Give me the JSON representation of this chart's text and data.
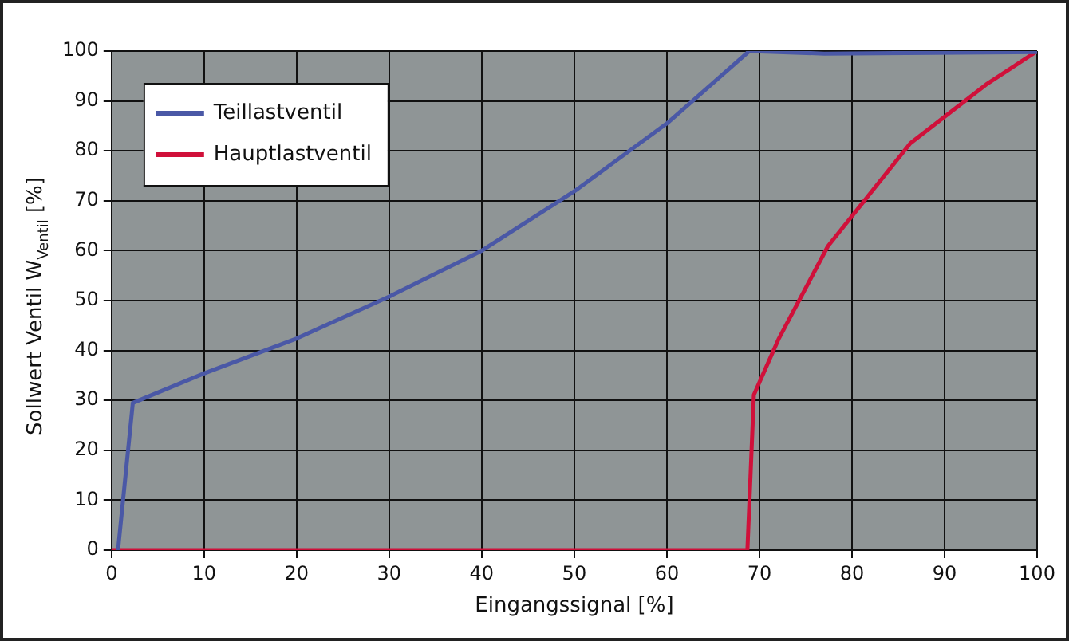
{
  "chart_data": {
    "type": "line",
    "xlabel": "Eingangssignal [%]",
    "ylabel": "Sollwert Ventil W$_{Ventil}$ [%]",
    "xlim": [
      0,
      100
    ],
    "xticks": [
      0,
      10,
      20,
      30,
      40,
      50,
      60,
      70,
      80,
      90,
      100
    ],
    "ylim": [
      0,
      100
    ],
    "yticks": [
      0,
      10,
      20,
      30,
      40,
      50,
      60,
      70,
      80,
      90,
      100
    ],
    "grid": true,
    "legend": "top left",
    "marker": "none",
    "line_style": "solid",
    "series": [
      {
        "name": "Teillastventil",
        "color": "#4a58a6",
        "x": [
          0.7,
          2.3,
          10,
          20,
          30,
          40,
          50,
          60,
          64,
          68.9,
          77,
          100
        ],
        "values": [
          0,
          29.5,
          35.4,
          42.4,
          50.8,
          60,
          71.9,
          85.5,
          92,
          100,
          99.5,
          99.8
        ]
      },
      {
        "name": "Hauptlastventil",
        "color": "#d0103a",
        "x": [
          0,
          68.7,
          69.4,
          72.1,
          77.4,
          86.3,
          94.5,
          100
        ],
        "values": [
          0,
          0,
          31.1,
          42.4,
          60.9,
          81.5,
          93.3,
          100
        ]
      }
    ]
  }
}
